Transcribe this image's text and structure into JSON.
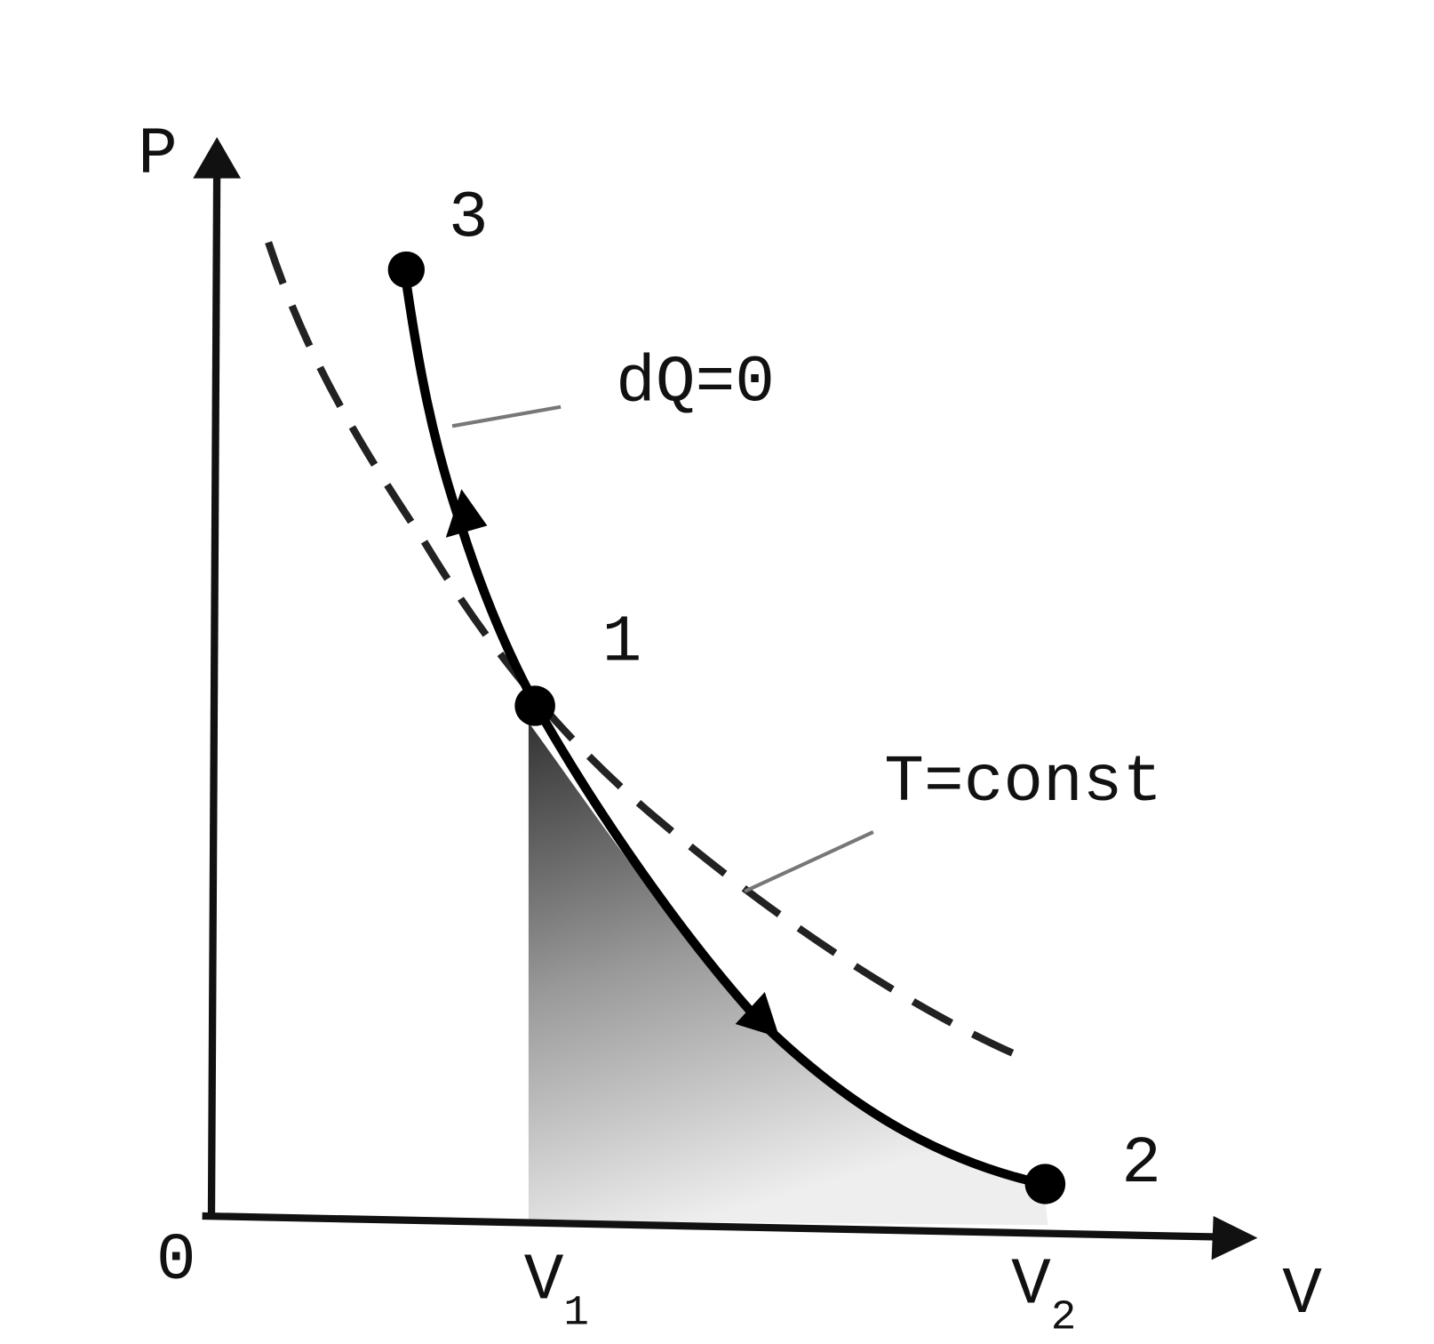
{
  "axes": {
    "y_label": "P",
    "x_label": "V",
    "origin": "0"
  },
  "ticks": {
    "v1": {
      "text": "V",
      "subscript": "1"
    },
    "v2": {
      "text": "V",
      "subscript": "2"
    }
  },
  "points": {
    "p3": "3",
    "p1": "1",
    "p2": "2"
  },
  "annotations": {
    "adiabatic": "dQ=0",
    "isotherm": "T=const"
  }
}
